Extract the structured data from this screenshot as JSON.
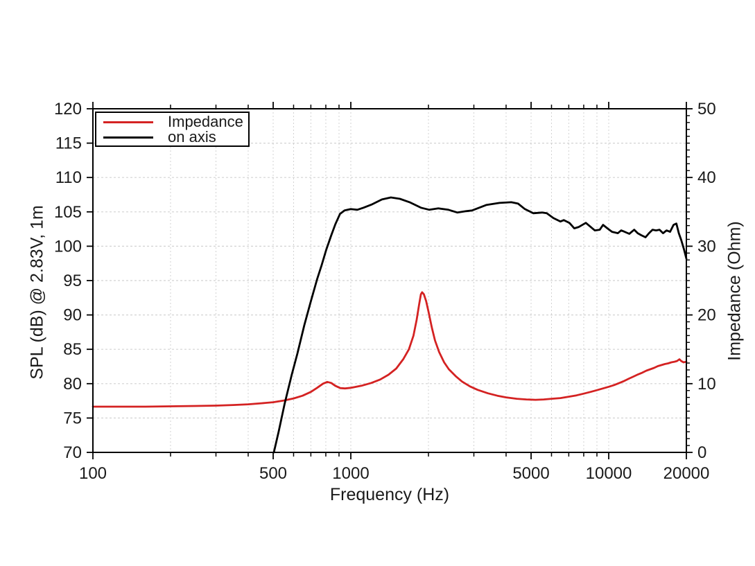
{
  "chart_data": {
    "type": "line",
    "title": "",
    "x_axis": {
      "label": "Frequency (Hz)",
      "scale": "log",
      "range": [
        100,
        20000
      ],
      "major_ticks": [
        100,
        500,
        1000,
        5000,
        10000,
        20000
      ],
      "major_tick_labels": [
        "100",
        "500",
        "1000",
        "5000",
        "10000",
        "20000"
      ],
      "minor_ticks": [
        200,
        300,
        400,
        600,
        700,
        800,
        900,
        2000,
        3000,
        4000,
        6000,
        7000,
        8000,
        9000
      ]
    },
    "y_left_axis": {
      "label": "SPL (dB) @ 2.83V, 1m",
      "range": [
        70,
        120
      ],
      "ticks": [
        70,
        75,
        80,
        85,
        90,
        95,
        100,
        105,
        110,
        115,
        120
      ]
    },
    "y_right_axis": {
      "label": "Impedance (Ohm)",
      "range": [
        0,
        50
      ],
      "major_ticks": [
        0,
        10,
        20,
        30,
        40,
        50
      ],
      "minor_tick_step": 1
    },
    "grid": {
      "shown": true,
      "h_lines_spl": [
        75,
        80,
        85,
        90,
        95,
        100,
        105,
        110,
        115
      ],
      "v_lines_hz": [
        200,
        300,
        400,
        500,
        600,
        700,
        800,
        900,
        1000,
        2000,
        3000,
        4000,
        5000,
        6000,
        7000,
        8000,
        9000,
        10000
      ],
      "color": "#d2d2d2"
    },
    "legend": {
      "position": "top-left",
      "items": [
        {
          "label": "Impedance",
          "color": "#d42222"
        },
        {
          "label": "on axis",
          "color": "#000000"
        }
      ]
    },
    "series": [
      {
        "name": "Impedance",
        "y_axis": "right",
        "unit": "Ohm",
        "color": "#d42222",
        "points": [
          [
            100,
            6.65
          ],
          [
            130,
            6.65
          ],
          [
            160,
            6.65
          ],
          [
            200,
            6.7
          ],
          [
            250,
            6.75
          ],
          [
            300,
            6.8
          ],
          [
            350,
            6.9
          ],
          [
            400,
            7.0
          ],
          [
            450,
            7.15
          ],
          [
            500,
            7.3
          ],
          [
            550,
            7.55
          ],
          [
            600,
            7.85
          ],
          [
            650,
            8.25
          ],
          [
            700,
            8.8
          ],
          [
            740,
            9.4
          ],
          [
            780,
            10.0
          ],
          [
            810,
            10.25
          ],
          [
            840,
            10.1
          ],
          [
            870,
            9.7
          ],
          [
            910,
            9.35
          ],
          [
            950,
            9.3
          ],
          [
            1000,
            9.4
          ],
          [
            1100,
            9.7
          ],
          [
            1200,
            10.1
          ],
          [
            1300,
            10.6
          ],
          [
            1400,
            11.3
          ],
          [
            1500,
            12.2
          ],
          [
            1600,
            13.6
          ],
          [
            1680,
            15.0
          ],
          [
            1750,
            17.0
          ],
          [
            1800,
            19.3
          ],
          [
            1840,
            21.5
          ],
          [
            1870,
            23.0
          ],
          [
            1890,
            23.3
          ],
          [
            1920,
            23.0
          ],
          [
            1960,
            22.0
          ],
          [
            2000,
            20.5
          ],
          [
            2060,
            18.2
          ],
          [
            2120,
            16.3
          ],
          [
            2200,
            14.6
          ],
          [
            2300,
            13.1
          ],
          [
            2400,
            12.1
          ],
          [
            2550,
            11.1
          ],
          [
            2700,
            10.3
          ],
          [
            2900,
            9.6
          ],
          [
            3100,
            9.1
          ],
          [
            3400,
            8.6
          ],
          [
            3700,
            8.25
          ],
          [
            4000,
            8.0
          ],
          [
            4400,
            7.8
          ],
          [
            4800,
            7.7
          ],
          [
            5200,
            7.65
          ],
          [
            5600,
            7.7
          ],
          [
            6000,
            7.8
          ],
          [
            6500,
            7.9
          ],
          [
            7000,
            8.1
          ],
          [
            7500,
            8.3
          ],
          [
            8000,
            8.55
          ],
          [
            8500,
            8.8
          ],
          [
            9000,
            9.05
          ],
          [
            9500,
            9.3
          ],
          [
            10000,
            9.55
          ],
          [
            10500,
            9.8
          ],
          [
            11000,
            10.1
          ],
          [
            11500,
            10.4
          ],
          [
            12000,
            10.75
          ],
          [
            12500,
            11.05
          ],
          [
            13000,
            11.35
          ],
          [
            13500,
            11.6
          ],
          [
            14000,
            11.9
          ],
          [
            14500,
            12.1
          ],
          [
            15000,
            12.3
          ],
          [
            15500,
            12.55
          ],
          [
            16000,
            12.7
          ],
          [
            16500,
            12.85
          ],
          [
            17000,
            12.95
          ],
          [
            17500,
            13.1
          ],
          [
            18000,
            13.2
          ],
          [
            18400,
            13.3
          ],
          [
            18800,
            13.55
          ],
          [
            19100,
            13.3
          ],
          [
            19500,
            13.1
          ],
          [
            20000,
            13.2
          ]
        ]
      },
      {
        "name": "on axis",
        "y_axis": "left",
        "unit": "dB SPL",
        "color": "#000000",
        "points": [
          [
            503,
            70
          ],
          [
            525,
            73
          ],
          [
            554,
            77.1
          ],
          [
            590,
            81.3
          ],
          [
            621,
            84.4
          ],
          [
            660,
            88.5
          ],
          [
            700,
            92.0
          ],
          [
            740,
            95.2
          ],
          [
            770,
            97.2
          ],
          [
            803,
            99.5
          ],
          [
            838,
            101.5
          ],
          [
            871,
            103.2
          ],
          [
            908,
            104.7
          ],
          [
            946,
            105.2
          ],
          [
            1000,
            105.4
          ],
          [
            1060,
            105.3
          ],
          [
            1120,
            105.6
          ],
          [
            1210,
            106.1
          ],
          [
            1320,
            106.8
          ],
          [
            1430,
            107.1
          ],
          [
            1550,
            106.9
          ],
          [
            1690,
            106.4
          ],
          [
            1870,
            105.6
          ],
          [
            2015,
            105.3
          ],
          [
            2185,
            105.5
          ],
          [
            2390,
            105.3
          ],
          [
            2590,
            104.9
          ],
          [
            2800,
            105.1
          ],
          [
            2950,
            105.2
          ],
          [
            3350,
            106.0
          ],
          [
            3770,
            106.3
          ],
          [
            4190,
            106.4
          ],
          [
            4450,
            106.2
          ],
          [
            4730,
            105.4
          ],
          [
            5100,
            104.8
          ],
          [
            5510,
            104.9
          ],
          [
            5750,
            104.8
          ],
          [
            6100,
            104.1
          ],
          [
            6500,
            103.6
          ],
          [
            6700,
            103.8
          ],
          [
            7040,
            103.4
          ],
          [
            7350,
            102.6
          ],
          [
            7660,
            102.8
          ],
          [
            8150,
            103.4
          ],
          [
            8450,
            102.9
          ],
          [
            8830,
            102.3
          ],
          [
            9230,
            102.4
          ],
          [
            9510,
            103.1
          ],
          [
            9880,
            102.6
          ],
          [
            10300,
            102.1
          ],
          [
            10850,
            101.9
          ],
          [
            11180,
            102.3
          ],
          [
            11530,
            102.1
          ],
          [
            12020,
            101.8
          ],
          [
            12560,
            102.4
          ],
          [
            12950,
            101.9
          ],
          [
            13370,
            101.6
          ],
          [
            13890,
            101.3
          ],
          [
            14330,
            101.9
          ],
          [
            14790,
            102.4
          ],
          [
            15260,
            102.3
          ],
          [
            15740,
            102.4
          ],
          [
            16240,
            101.9
          ],
          [
            16760,
            102.3
          ],
          [
            17290,
            102.1
          ],
          [
            17840,
            103.1
          ],
          [
            18300,
            103.3
          ],
          [
            18700,
            101.9
          ],
          [
            19100,
            100.9
          ],
          [
            19600,
            99.5
          ],
          [
            20000,
            98.2
          ]
        ]
      }
    ]
  },
  "colors": {
    "frame": "#000000",
    "tick": "#000000",
    "grid": "#d2d2d2",
    "text": "#1a1a1a",
    "background": "#ffffff",
    "impedance_series": "#d42222",
    "on_axis_series": "#000000"
  }
}
